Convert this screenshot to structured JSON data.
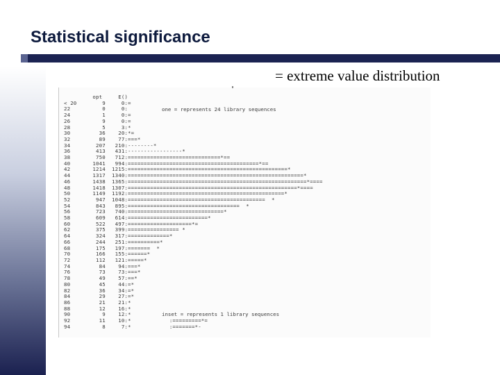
{
  "slide": {
    "title": "Statistical significance",
    "subtitle": "= extreme value distribution"
  },
  "histogram": {
    "header": {
      "col_score": "",
      "col_opt": "opt",
      "col_expected": "E()"
    },
    "legend_top": "one = represents 24 library sequences",
    "legend_bottom": "inset = represents 1 library sequences",
    "rows": [
      {
        "score": "< 20",
        "opt": "9",
        "expected": "0",
        "bar": ":="
      },
      {
        "score": "22",
        "opt": "0",
        "expected": "0",
        "bar": ":"
      },
      {
        "score": "24",
        "opt": "1",
        "expected": "0",
        "bar": ":="
      },
      {
        "score": "26",
        "opt": "9",
        "expected": "0",
        "bar": ":="
      },
      {
        "score": "28",
        "opt": "5",
        "expected": "3",
        "bar": ":*"
      },
      {
        "score": "30",
        "opt": "36",
        "expected": "20",
        "bar": ":*="
      },
      {
        "score": "32",
        "opt": "89",
        "expected": "77",
        "bar": ":===*"
      },
      {
        "score": "34",
        "opt": "207",
        "expected": "210",
        "bar": ":--------*"
      },
      {
        "score": "36",
        "opt": "413",
        "expected": "431",
        "bar": ":-----------------*"
      },
      {
        "score": "38",
        "opt": "750",
        "expected": "712",
        "bar": ":=============================*=="
      },
      {
        "score": "40",
        "opt": "1041",
        "expected": "994",
        "bar": ":=========================================*=="
      },
      {
        "score": "42",
        "opt": "1214",
        "expected": "1215",
        "bar": ":==================================================*"
      },
      {
        "score": "44",
        "opt": "1317",
        "expected": "1340",
        "bar": ":=======================================================*"
      },
      {
        "score": "46",
        "opt": "1438",
        "expected": "1365",
        "bar": ":========================================================*===="
      },
      {
        "score": "48",
        "opt": "1418",
        "expected": "1307",
        "bar": ":=====================================================*===="
      },
      {
        "score": "50",
        "opt": "1149",
        "expected": "1192",
        "bar": ":=================================================*"
      },
      {
        "score": "52",
        "opt": "947",
        "expected": "1048",
        "bar": ":===========================================  *"
      },
      {
        "score": "54",
        "opt": "843",
        "expected": "895",
        "bar": ":===================================  *"
      },
      {
        "score": "56",
        "opt": "723",
        "expected": "740",
        "bar": ":==============================*"
      },
      {
        "score": "58",
        "opt": "609",
        "expected": "614",
        "bar": ":=========================*"
      },
      {
        "score": "60",
        "opt": "522",
        "expected": "497",
        "bar": ":====================*="
      },
      {
        "score": "62",
        "opt": "375",
        "expected": "399",
        "bar": ":================ *"
      },
      {
        "score": "64",
        "opt": "324",
        "expected": "317",
        "bar": ":=============*"
      },
      {
        "score": "66",
        "opt": "244",
        "expected": "251",
        "bar": ":==========*"
      },
      {
        "score": "68",
        "opt": "175",
        "expected": "197",
        "bar": ":=======  *"
      },
      {
        "score": "70",
        "opt": "166",
        "expected": "155",
        "bar": ":======*"
      },
      {
        "score": "72",
        "opt": "112",
        "expected": "121",
        "bar": ":=====*"
      },
      {
        "score": "74",
        "opt": "84",
        "expected": "94",
        "bar": ":===*"
      },
      {
        "score": "76",
        "opt": "73",
        "expected": "73",
        "bar": ":===*"
      },
      {
        "score": "78",
        "opt": "49",
        "expected": "57",
        "bar": ":==*"
      },
      {
        "score": "80",
        "opt": "45",
        "expected": "44",
        "bar": ":=*"
      },
      {
        "score": "82",
        "opt": "36",
        "expected": "34",
        "bar": ":=*"
      },
      {
        "score": "84",
        "opt": "29",
        "expected": "27",
        "bar": ":=*"
      },
      {
        "score": "86",
        "opt": "21",
        "expected": "21",
        "bar": ":*"
      },
      {
        "score": "88",
        "opt": "12",
        "expected": "16",
        "bar": ":*"
      },
      {
        "score": "90",
        "opt": "9",
        "expected": "12",
        "bar": ":*"
      },
      {
        "score": "92",
        "opt": "11",
        "expected": "10",
        "bar": ":*            :=========*="
      },
      {
        "score": "94",
        "opt": "8",
        "expected": "7",
        "bar": ":*            :=======*-"
      }
    ]
  }
}
